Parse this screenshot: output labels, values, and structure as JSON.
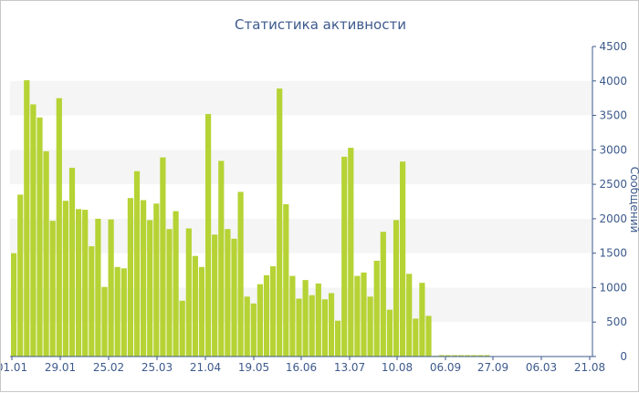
{
  "chart_data": {
    "type": "bar",
    "title": "Статистика активности",
    "xlabel": "",
    "ylabel": "Сообщений",
    "ylim": [
      0,
      4500
    ],
    "y_ticks": [
      0,
      500,
      1000,
      1500,
      2000,
      2500,
      3000,
      3500,
      4000,
      4500
    ],
    "y_axis_side": "right",
    "grid": "horizontal alternating bands",
    "legend": "none",
    "bar_color": "#b5d334",
    "band_color": "#f5f5f5",
    "axis_color": "#3d5a8c",
    "x_tick_labels": [
      "01.01",
      "29.01",
      "25.02",
      "25.03",
      "21.04",
      "19.05",
      "16.06",
      "13.07",
      "10.08",
      "06.09",
      "27.09",
      "06.03",
      "21.08"
    ],
    "values": [
      1500,
      2350,
      4010,
      3660,
      3470,
      2980,
      1970,
      3750,
      2260,
      2740,
      2140,
      2130,
      1600,
      2000,
      1010,
      1990,
      1300,
      1280,
      2300,
      2690,
      2270,
      1980,
      2220,
      2890,
      1850,
      2110,
      810,
      1860,
      1460,
      1300,
      3520,
      1770,
      2840,
      1850,
      1710,
      2390,
      870,
      770,
      1050,
      1180,
      1310,
      3890,
      2210,
      1170,
      840,
      1110,
      890,
      1060,
      830,
      920,
      520,
      2900,
      3030,
      1170,
      1220,
      870,
      1390,
      1810,
      680,
      1980,
      2830,
      1200,
      550,
      1070,
      590,
      10,
      20,
      20,
      20,
      20,
      20,
      20,
      20,
      20
    ]
  }
}
